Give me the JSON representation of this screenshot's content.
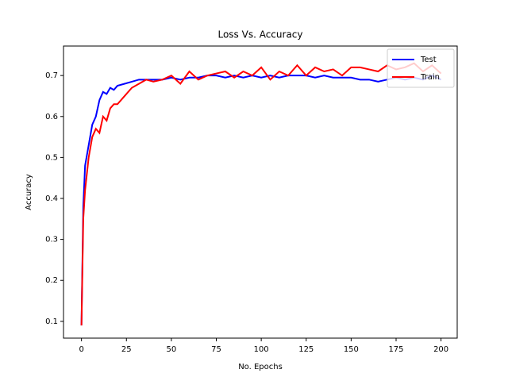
{
  "chart_data": {
    "type": "line",
    "title": "Loss Vs. Accuracy",
    "xlabel": "No. Epochs",
    "ylabel": "Accuracy",
    "x": [
      0,
      1,
      2,
      4,
      6,
      8,
      10,
      12,
      14,
      16,
      18,
      20,
      24,
      28,
      32,
      36,
      40,
      45,
      50,
      55,
      60,
      65,
      70,
      75,
      80,
      85,
      90,
      95,
      100,
      105,
      110,
      115,
      120,
      125,
      130,
      135,
      140,
      145,
      150,
      155,
      160,
      165,
      170,
      175,
      180,
      185,
      190,
      195,
      200
    ],
    "series": [
      {
        "name": "Test",
        "color": "#0000ff",
        "values": [
          0.09,
          0.38,
          0.48,
          0.53,
          0.58,
          0.6,
          0.64,
          0.66,
          0.655,
          0.67,
          0.665,
          0.675,
          0.68,
          0.685,
          0.69,
          0.69,
          0.69,
          0.69,
          0.695,
          0.69,
          0.695,
          0.695,
          0.7,
          0.7,
          0.695,
          0.7,
          0.695,
          0.7,
          0.695,
          0.7,
          0.695,
          0.7,
          0.7,
          0.7,
          0.695,
          0.7,
          0.695,
          0.695,
          0.695,
          0.69,
          0.69,
          0.685,
          0.69,
          0.695,
          0.69,
          0.695,
          0.69,
          0.7,
          0.69
        ]
      },
      {
        "name": "Train",
        "color": "#ff0000",
        "values": [
          0.09,
          0.35,
          0.42,
          0.5,
          0.55,
          0.57,
          0.56,
          0.6,
          0.59,
          0.62,
          0.63,
          0.63,
          0.65,
          0.67,
          0.68,
          0.69,
          0.685,
          0.69,
          0.7,
          0.68,
          0.71,
          0.69,
          0.7,
          0.705,
          0.71,
          0.695,
          0.71,
          0.7,
          0.72,
          0.69,
          0.71,
          0.7,
          0.725,
          0.7,
          0.72,
          0.71,
          0.715,
          0.7,
          0.72,
          0.72,
          0.715,
          0.71,
          0.725,
          0.715,
          0.72,
          0.73,
          0.71,
          0.725,
          0.705
        ]
      }
    ],
    "xlim": [
      -10,
      209
    ],
    "ylim": [
      0.059,
      0.772
    ],
    "xticks": [
      0,
      25,
      50,
      75,
      100,
      125,
      150,
      175,
      200
    ],
    "yticks": [
      0.1,
      0.2,
      0.3,
      0.4,
      0.5,
      0.6,
      0.7
    ],
    "legend": "upper right"
  }
}
